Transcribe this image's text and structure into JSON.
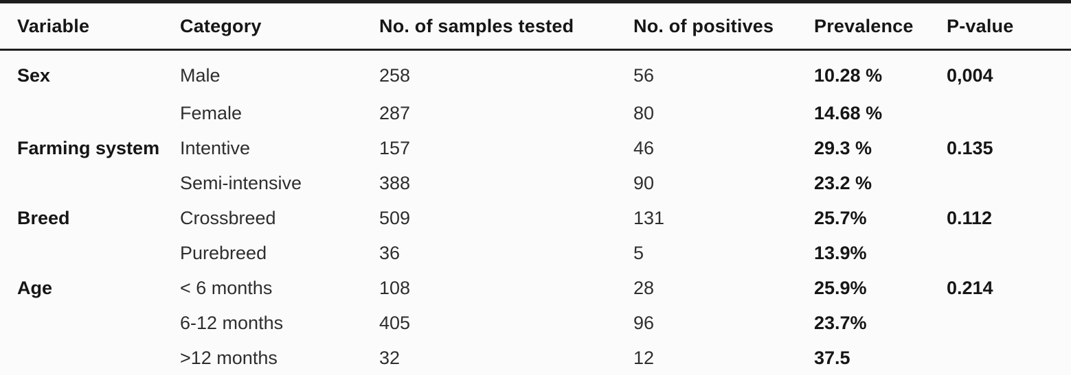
{
  "table": {
    "columns": [
      {
        "key": "variable",
        "label": "Variable"
      },
      {
        "key": "category",
        "label": "Category"
      },
      {
        "key": "samples",
        "label": "No. of samples tested"
      },
      {
        "key": "positives",
        "label": "No. of positives"
      },
      {
        "key": "prevalence",
        "label": "Prevalence"
      },
      {
        "key": "pvalue",
        "label": "P-value"
      }
    ],
    "rows": [
      {
        "variable": "Sex",
        "category": "Male",
        "samples": "258",
        "positives": "56",
        "prevalence": "10.28 %",
        "pvalue": "0,004"
      },
      {
        "variable": "",
        "category": "Female",
        "samples": "287",
        "positives": "80",
        "prevalence": "14.68 %",
        "pvalue": ""
      },
      {
        "variable": "Farming system",
        "category": "Intentive",
        "samples": "157",
        "positives": "46",
        "prevalence": "29.3 %",
        "pvalue": "0.135"
      },
      {
        "variable": "",
        "category": "Semi-intensive",
        "samples": "388",
        "positives": "90",
        "prevalence": "23.2 %",
        "pvalue": ""
      },
      {
        "variable": "Breed",
        "category": "Crossbreed",
        "samples": "509",
        "positives": "131",
        "prevalence": "25.7%",
        "pvalue": "0.112"
      },
      {
        "variable": "",
        "category": "Purebreed",
        "samples": "36",
        "positives": "5",
        "prevalence": "13.9%",
        "pvalue": ""
      },
      {
        "variable": "Age",
        "category": "< 6 months",
        "samples": "108",
        "positives": "28",
        "prevalence": "25.9%",
        "pvalue": "0.214"
      },
      {
        "variable": "",
        "category": "6-12 months",
        "samples": "405",
        "positives": "96",
        "prevalence": "23.7%",
        "pvalue": ""
      },
      {
        "variable": "",
        "category": ">12 months",
        "samples": "32",
        "positives": "12",
        "prevalence": "37.5",
        "pvalue": ""
      }
    ]
  },
  "colors": {
    "background": "#fbfbfb",
    "text_regular": "#2e2e2e",
    "text_bold": "#161616",
    "border": "#1e1e1e"
  }
}
